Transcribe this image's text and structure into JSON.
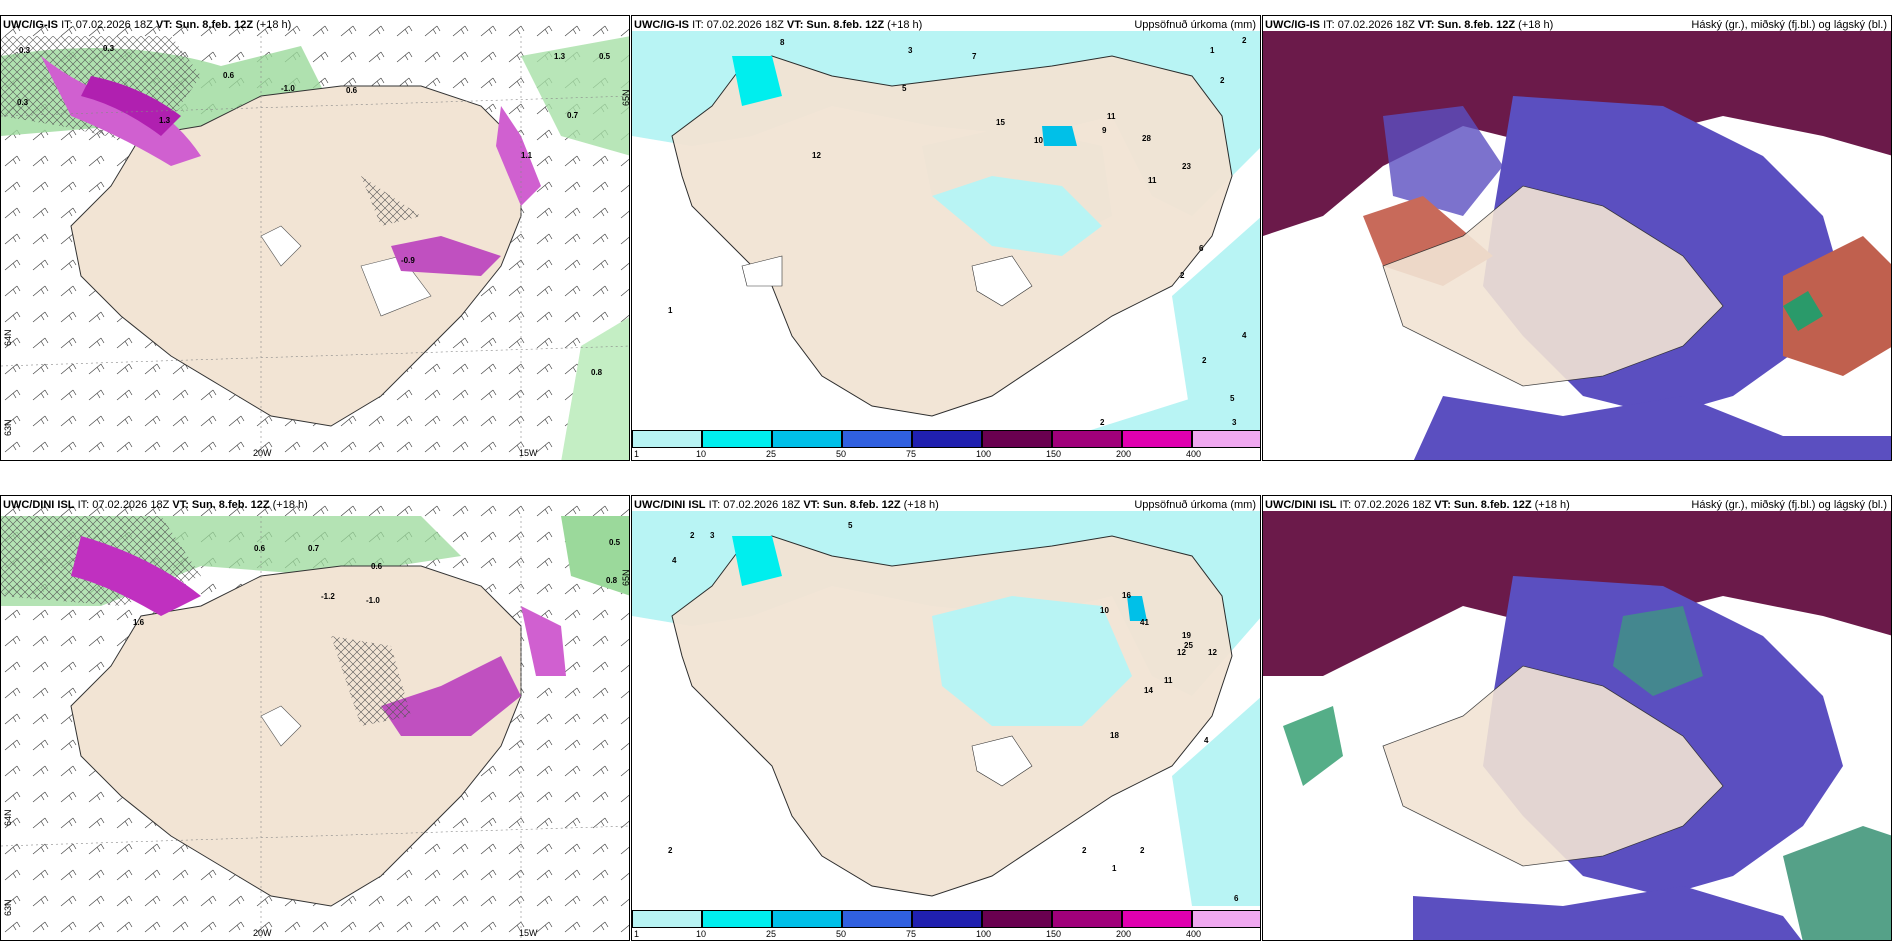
{
  "panels": {
    "top_left": {
      "model": "UWC/IG-IS",
      "it": "IT: 07.02.2026 18Z",
      "vt": "VT: Sun. 8.feb. 12Z",
      "lead": "(+18 h)",
      "right": ""
    },
    "top_mid": {
      "model": "UWC/IG-IS",
      "it": "IT: 07.02.2026 18Z",
      "vt": "VT: Sun. 8.feb. 12Z",
      "lead": "(+18 h)",
      "right": "Uppsöfnuð úrkoma (mm)"
    },
    "top_right": {
      "model": "UWC/IG-IS",
      "it": "IT: 07.02.2026 18Z",
      "vt": "VT: Sun. 8.feb. 12Z",
      "lead": "(+18 h)",
      "right": "Háský (gr.), miðský (fj.bl.) og lágský (bl.)"
    },
    "bot_left": {
      "model": "UWC/DINI ISL",
      "it": "IT: 07.02.2026 18Z",
      "vt": "VT: Sun. 8.feb. 12Z",
      "lead": "(+18 h)",
      "right": ""
    },
    "bot_mid": {
      "model": "UWC/DINI ISL",
      "it": "IT: 07.02.2026 18Z",
      "vt": "VT: Sun. 8.feb. 12Z",
      "lead": "(+18 h)",
      "right": "Uppsöfnuð úrkoma (mm)"
    },
    "bot_right": {
      "model": "UWC/DINI ISL",
      "it": "IT: 07.02.2026 18Z",
      "vt": "VT: Sun. 8.feb. 12Z",
      "lead": "(+18 h)",
      "right": "Háský (gr.), miðský (fj.bl.) og lágský (bl.)"
    }
  },
  "colorbar": {
    "ticks": [
      "1",
      "10",
      "25",
      "50",
      "75",
      "100",
      "150",
      "200",
      "400"
    ],
    "colors": [
      "#b8f4f4",
      "#00eeee",
      "#00c0e8",
      "#3060e0",
      "#2020b0",
      "#6a0050",
      "#a0007a",
      "#e000b0",
      "#f0a8f0"
    ]
  },
  "axes": {
    "lon_labels": [
      "20W",
      "15W"
    ],
    "lat_labels": [
      "65N",
      "64N",
      "63N"
    ]
  },
  "map_labels": {
    "top_left": [
      "0.3",
      "0.3",
      "0.6",
      "-1.0",
      "0.6",
      "1.3",
      "0.5",
      "0.7",
      "0.3",
      "1.3",
      "-0.9",
      "1.1",
      "0.8"
    ],
    "top_mid": [
      "8",
      "3",
      "7",
      "5",
      "12",
      "15",
      "10",
      "11",
      "9",
      "28",
      "23",
      "11",
      "6",
      "2",
      "4",
      "1",
      "5",
      "2",
      "3",
      "2",
      "1",
      "2",
      "2"
    ],
    "bot_left": [
      "0.5",
      "0.8",
      "-1.0",
      "0.6",
      "0.7",
      "-1.2",
      "0.6",
      "1.6"
    ],
    "bot_mid": [
      "5",
      "4",
      "2",
      "3",
      "12",
      "10",
      "16",
      "41",
      "19",
      "25",
      "12",
      "14",
      "11",
      "18",
      "4",
      "2",
      "2",
      "1",
      "6",
      "2"
    ]
  }
}
